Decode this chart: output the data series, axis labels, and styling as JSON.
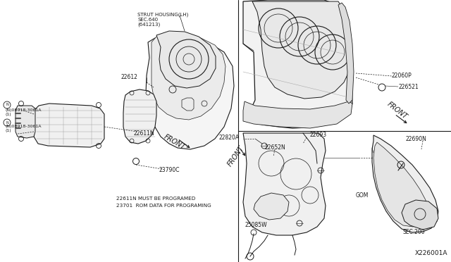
{
  "bg_color": "#ffffff",
  "line_color": "#1a1a1a",
  "fig_width": 6.4,
  "fig_height": 3.72,
  "dpi": 100,
  "labels": {
    "strut_housing": "STRUT HOUSING(LH)\nSEC.640\n(641213)",
    "part_22612": "22612",
    "part_23790C": "23790C",
    "part_22611N": "22611N",
    "note1": "22611N MUST BE PROGRAMED",
    "note2": "23701  ROM DATA FOR PROGRAMING",
    "part_0B918_3061A_1": "(N)0B918-3061A\n(1)",
    "part_0B918_3061A_2": "(N)0B918-3061A\n(1)",
    "part_22060P": "22060P",
    "part_226521": "226521",
    "part_22820A": "22820A",
    "part_22693": "22693",
    "part_22652N": "22652N",
    "part_25085W": "25085W",
    "part_GOM": "GOM",
    "part_22690N": "22690N",
    "part_SEC200": "SEC.200",
    "diagram_code": "X226001A"
  },
  "font_size_label": 5.5,
  "font_size_small": 5.0,
  "font_size_note": 5.2,
  "font_size_diagram_id": 6.5,
  "font_size_front": 7.0
}
